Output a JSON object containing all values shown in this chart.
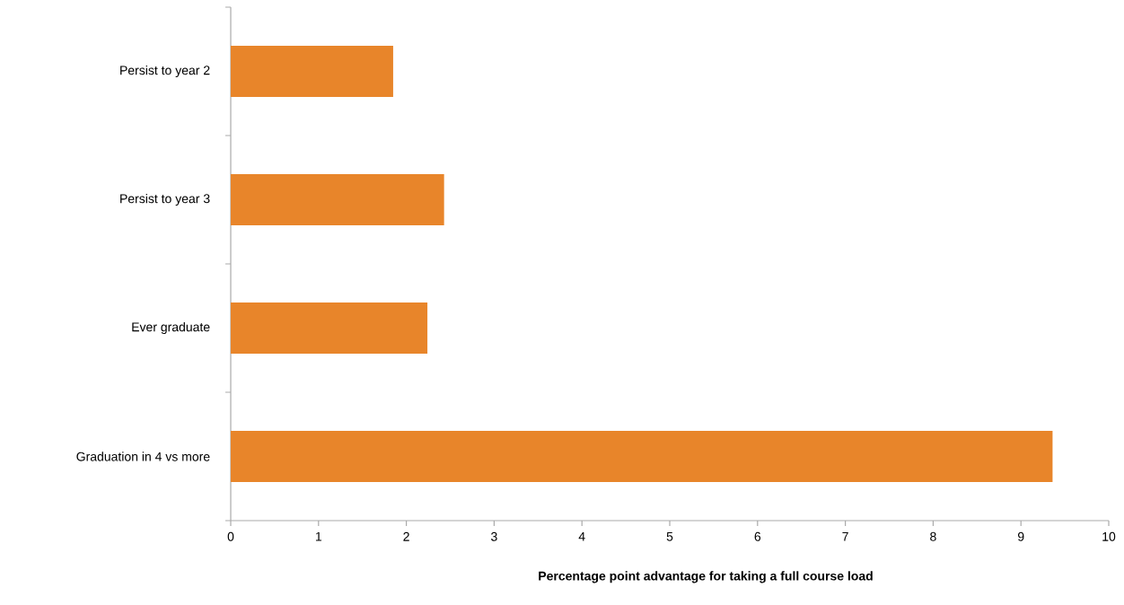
{
  "chart_data": {
    "type": "bar",
    "orientation": "horizontal",
    "xlabel": "Percentage point advantage for taking a full course load",
    "categories": [
      "Persist to year 2",
      "Persist to year 3",
      "Ever graduate",
      "Graduation in 4 vs more"
    ],
    "values": [
      1.85,
      2.43,
      2.24,
      9.36
    ],
    "color": "#e8852a",
    "xlim": [
      0,
      10
    ],
    "xticks": [
      0,
      1,
      2,
      3,
      4,
      5,
      6,
      7,
      8,
      9,
      10
    ]
  }
}
